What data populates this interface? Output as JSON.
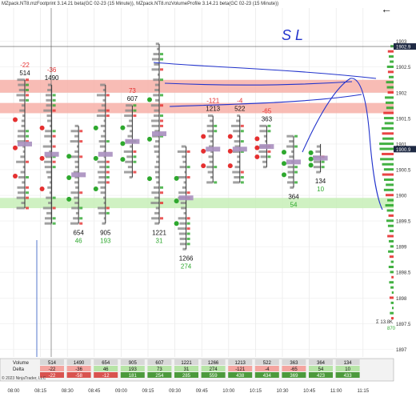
{
  "header": {
    "title": "MZpack.NT8.mzFootprint 3.14.21 beta(GC 02-23 (15 Minute)), MZpack.NT8.mzVolumeProfile 3.14.21 beta(GC 02-23 (15 Minute))"
  },
  "colors": {
    "buy": "#2ea82e",
    "sell": "#e53030",
    "poc": "#a98fbf",
    "zone_red": "#f7b0a8",
    "zone_green": "#c7efb7",
    "annotation": "#2233cc",
    "price_marker": "#1f2a44"
  },
  "chart_data": {
    "type": "table",
    "x_ticks": [
      "08:00",
      "08:15",
      "08:30",
      "08:45",
      "09:00",
      "09:15",
      "09:30",
      "09:45",
      "10:00",
      "10:15",
      "10:30",
      "10:45",
      "11:00",
      "11:15"
    ],
    "y_ticks": [
      "1903",
      "1902.5",
      "1902",
      "1901.5",
      "1901",
      "1900.5",
      "1900",
      "1899.5",
      "1899",
      "1898.5",
      "1898",
      "1897.5",
      "1897"
    ],
    "y_range": [
      1896.85,
      1903.65
    ],
    "price_labels": {
      "upper": "1902.9",
      "current": "1900.9"
    },
    "bars": [
      {
        "time": "08:00",
        "volume": 514,
        "delta": -22,
        "high": 1902.25,
        "low": 1899.75
      },
      {
        "time": "08:15",
        "volume": 1490,
        "delta": -36,
        "high": 1902.15,
        "low": 1899.45
      },
      {
        "time": "08:30",
        "volume": 654,
        "delta": 46,
        "high": 1901.35,
        "low": 1899.45
      },
      {
        "time": "08:45",
        "volume": 905,
        "delta": 193,
        "high": 1902.15,
        "low": 1899.45
      },
      {
        "time": "09:00",
        "volume": 607,
        "delta": 73,
        "high": 1901.75,
        "low": 1900.35
      },
      {
        "time": "09:15",
        "volume": 1221,
        "delta": 31,
        "high": 1902.95,
        "low": 1899.45
      },
      {
        "time": "09:30",
        "volume": 1266,
        "delta": 274,
        "high": 1900.95,
        "low": 1898.95
      },
      {
        "time": "09:45",
        "volume": 1213,
        "delta": -121,
        "high": 1901.55,
        "low": 1900.25
      },
      {
        "time": "10:00",
        "volume": 522,
        "delta": -4,
        "high": 1901.55,
        "low": 1900.25
      },
      {
        "time": "10:15",
        "volume": 363,
        "delta": -65,
        "high": 1901.35,
        "low": 1900.55
      },
      {
        "time": "10:30",
        "volume": 364,
        "delta": 54,
        "high": 1901.15,
        "low": 1900.15
      },
      {
        "time": "10:45",
        "volume": 134,
        "delta": 10,
        "high": 1901.0,
        "low": 1900.45
      }
    ],
    "zones": [
      {
        "color": "red",
        "low": 1902.0,
        "high": 1902.25
      },
      {
        "color": "red",
        "low": 1901.6,
        "high": 1901.8
      },
      {
        "color": "green",
        "low": 1899.75,
        "high": 1899.95
      }
    ],
    "footer": {
      "volume_label": "Volume",
      "delta_label": "Delta",
      "cum_delta": [
        -22,
        -58,
        -12,
        181,
        254,
        285,
        559,
        438,
        434,
        369,
        423,
        433
      ],
      "side_total": "Σ 13.8K",
      "side_delta": "870",
      "copyright": "© 2023 NinjaTrader, LLC"
    },
    "annotation_text": "S L"
  }
}
